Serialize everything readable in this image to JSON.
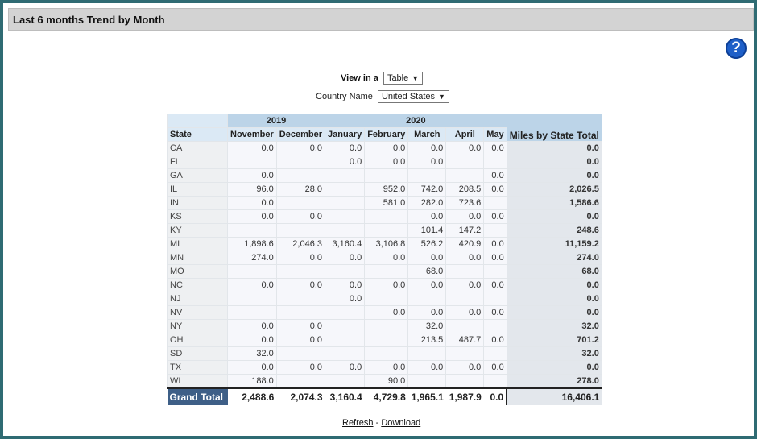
{
  "title": "Last 6 months Trend by Month",
  "controls": {
    "view_label": "View in a",
    "view_value": "Table",
    "country_label": "Country Name",
    "country_value": "United States"
  },
  "table": {
    "years": [
      {
        "label": "2019",
        "span": 2
      },
      {
        "label": "2020",
        "span": 5
      }
    ],
    "state_header": "State",
    "months": [
      "November",
      "December",
      "January",
      "February",
      "March",
      "April",
      "May"
    ],
    "total_header": "Miles by State Total",
    "rows": [
      {
        "state": "CA",
        "values": [
          "0.0",
          "0.0",
          "0.0",
          "0.0",
          "0.0",
          "0.0",
          "0.0"
        ],
        "total": "0.0"
      },
      {
        "state": "FL",
        "values": [
          "",
          "",
          "0.0",
          "0.0",
          "0.0",
          "",
          ""
        ],
        "total": "0.0"
      },
      {
        "state": "GA",
        "values": [
          "0.0",
          "",
          "",
          "",
          "",
          "",
          "0.0"
        ],
        "total": "0.0"
      },
      {
        "state": "IL",
        "values": [
          "96.0",
          "28.0",
          "",
          "952.0",
          "742.0",
          "208.5",
          "0.0"
        ],
        "total": "2,026.5"
      },
      {
        "state": "IN",
        "values": [
          "0.0",
          "",
          "",
          "581.0",
          "282.0",
          "723.6",
          ""
        ],
        "total": "1,586.6"
      },
      {
        "state": "KS",
        "values": [
          "0.0",
          "0.0",
          "",
          "",
          "0.0",
          "0.0",
          "0.0"
        ],
        "total": "0.0"
      },
      {
        "state": "KY",
        "values": [
          "",
          "",
          "",
          "",
          "101.4",
          "147.2",
          ""
        ],
        "total": "248.6"
      },
      {
        "state": "MI",
        "values": [
          "1,898.6",
          "2,046.3",
          "3,160.4",
          "3,106.8",
          "526.2",
          "420.9",
          "0.0"
        ],
        "total": "11,159.2"
      },
      {
        "state": "MN",
        "values": [
          "274.0",
          "0.0",
          "0.0",
          "0.0",
          "0.0",
          "0.0",
          "0.0"
        ],
        "total": "274.0"
      },
      {
        "state": "MO",
        "values": [
          "",
          "",
          "",
          "",
          "68.0",
          "",
          ""
        ],
        "total": "68.0"
      },
      {
        "state": "NC",
        "values": [
          "0.0",
          "0.0",
          "0.0",
          "0.0",
          "0.0",
          "0.0",
          "0.0"
        ],
        "total": "0.0"
      },
      {
        "state": "NJ",
        "values": [
          "",
          "",
          "0.0",
          "",
          "",
          "",
          ""
        ],
        "total": "0.0"
      },
      {
        "state": "NV",
        "values": [
          "",
          "",
          "",
          "0.0",
          "0.0",
          "0.0",
          "0.0"
        ],
        "total": "0.0"
      },
      {
        "state": "NY",
        "values": [
          "0.0",
          "0.0",
          "",
          "",
          "32.0",
          "",
          ""
        ],
        "total": "32.0"
      },
      {
        "state": "OH",
        "values": [
          "0.0",
          "0.0",
          "",
          "",
          "213.5",
          "487.7",
          "0.0"
        ],
        "total": "701.2"
      },
      {
        "state": "SD",
        "values": [
          "32.0",
          "",
          "",
          "",
          "",
          "",
          ""
        ],
        "total": "32.0"
      },
      {
        "state": "TX",
        "values": [
          "0.0",
          "0.0",
          "0.0",
          "0.0",
          "0.0",
          "0.0",
          "0.0"
        ],
        "total": "0.0"
      },
      {
        "state": "WI",
        "values": [
          "188.0",
          "",
          "",
          "90.0",
          "",
          "",
          ""
        ],
        "total": "278.0"
      }
    ],
    "grand_total": {
      "label": "Grand Total",
      "values": [
        "2,488.6",
        "2,074.3",
        "3,160.4",
        "4,729.8",
        "1,965.1",
        "1,987.9",
        "0.0"
      ],
      "total": "16,406.1"
    }
  },
  "links": {
    "refresh": "Refresh",
    "separator": " - ",
    "download": "Download"
  }
}
